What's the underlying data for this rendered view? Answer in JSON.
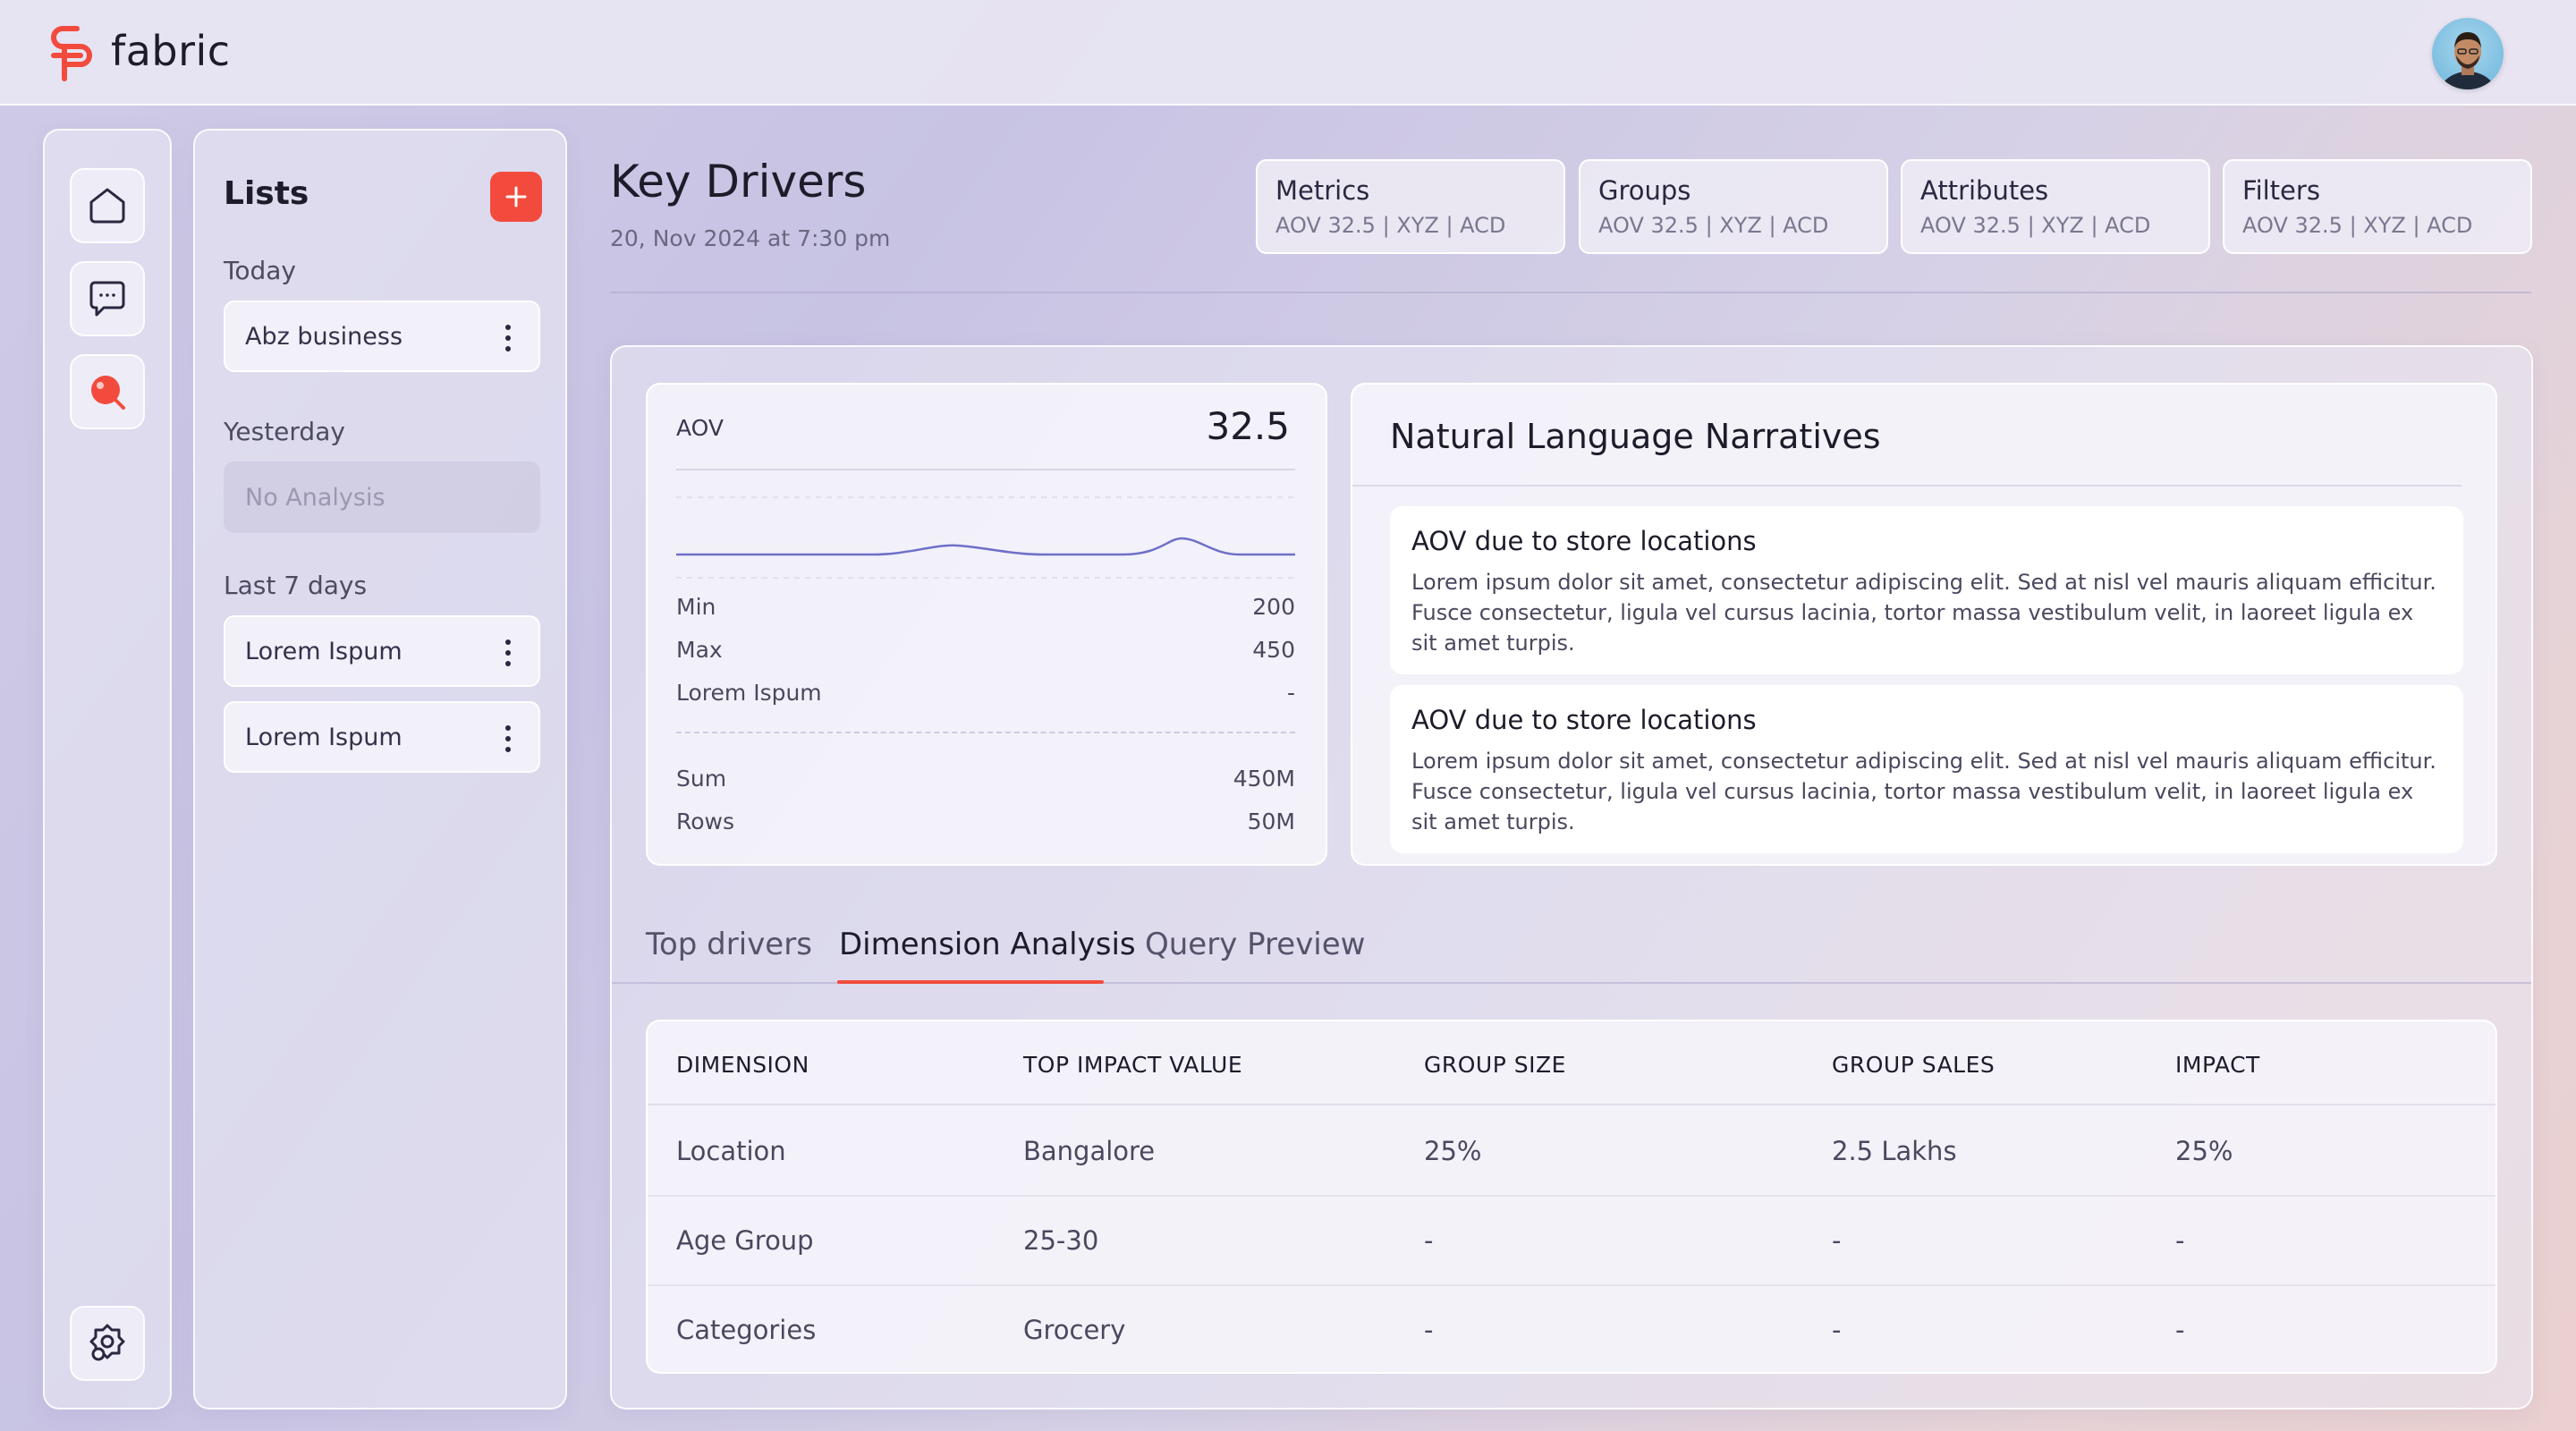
{
  "app": {
    "name": "fabric"
  },
  "colors": {
    "accent": "#f24b3d",
    "spark": "#6f6fc8"
  },
  "nav_icons": [
    "home-icon",
    "chat-icon",
    "search-analysis-icon",
    "settings-icon"
  ],
  "lists": {
    "title": "Lists",
    "today_label": "Today",
    "today_items": [
      "Abz business"
    ],
    "yesterday_label": "Yesterday",
    "yesterday_empty": "No Analysis",
    "last7_label": "Last 7 days",
    "last7_items": [
      "Lorem Ispum",
      "Lorem Ispum"
    ]
  },
  "header": {
    "title": "Key Drivers",
    "subtitle": "20, Nov 2024 at 7:30 pm",
    "chips": [
      {
        "title": "Metrics",
        "sub": "AOV 32.5  |  XYZ  |  ACD"
      },
      {
        "title": "Groups",
        "sub": "AOV 32.5  |  XYZ  |  ACD"
      },
      {
        "title": "Attributes",
        "sub": "AOV 32.5  |  XYZ  |  ACD"
      },
      {
        "title": "Filters",
        "sub": "AOV 32.5  |  XYZ  |  ACD"
      }
    ]
  },
  "aov": {
    "label": "AOV",
    "value": "32.5",
    "stats": [
      {
        "k": "Min",
        "v": "200"
      },
      {
        "k": "Max",
        "v": "450"
      },
      {
        "k": "Lorem Ispum",
        "v": "-"
      }
    ],
    "totals": [
      {
        "k": "Sum",
        "v": "450M"
      },
      {
        "k": "Rows",
        "v": "50M"
      }
    ]
  },
  "narratives": {
    "title": "Natural Language Narratives",
    "items": [
      {
        "title": "AOV due to store locations",
        "body": "Lorem ipsum dolor sit amet, consectetur adipiscing elit. Sed at nisl vel mauris aliquam efficitur. Fusce consectetur, ligula vel cursus lacinia, tortor massa vestibulum velit, in laoreet ligula ex sit amet turpis."
      },
      {
        "title": "AOV due to store locations",
        "body": "Lorem ipsum dolor sit amet, consectetur adipiscing elit. Sed at nisl vel mauris aliquam efficitur. Fusce consectetur, ligula vel cursus lacinia, tortor massa vestibulum velit, in laoreet ligula ex sit amet turpis."
      }
    ]
  },
  "tabs": [
    "Top drivers",
    "Dimension Analysis",
    "Query Preview"
  ],
  "active_tab": "Dimension Analysis",
  "table": {
    "headers": [
      "DIMENSION",
      "TOP IMPACT VALUE",
      "GROUP SIZE",
      "GROUP SALES",
      "IMPACT"
    ],
    "rows": [
      [
        "Location",
        "Bangalore",
        "25%",
        "2.5 Lakhs",
        "25%"
      ],
      [
        "Age Group",
        "25-30",
        "-",
        "-",
        "-"
      ],
      [
        "Categories",
        "Grocery",
        "-",
        "-",
        "-"
      ]
    ]
  }
}
